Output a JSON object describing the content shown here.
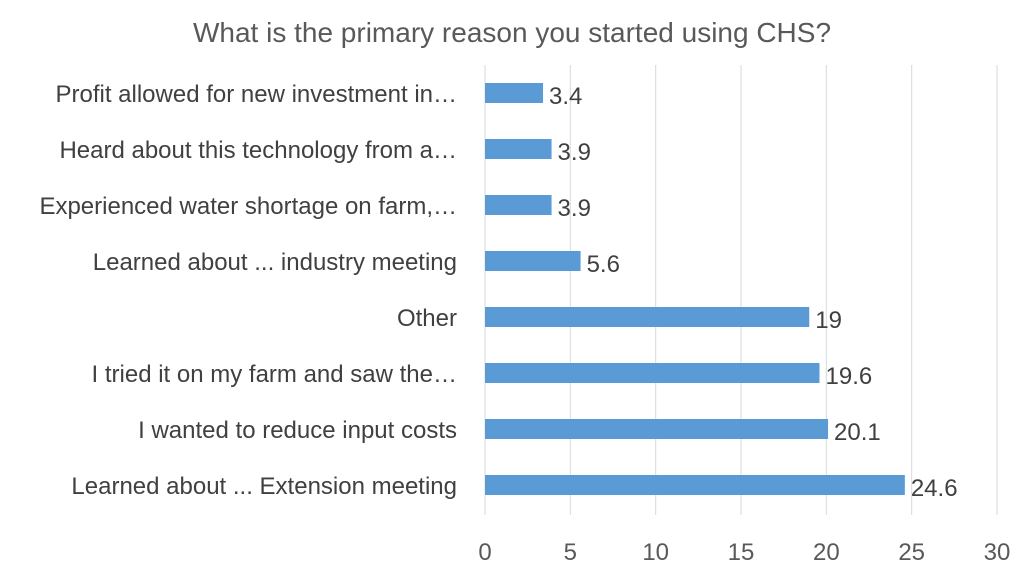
{
  "chart_data": {
    "type": "bar",
    "orientation": "horizontal",
    "title": "What is the primary reason you started using CHS?",
    "categories": [
      "Profit allowed for new investment in…",
      "Heard about this technology from a…",
      "Experienced water shortage on farm,…",
      "Learned about ... industry meeting",
      "Other",
      "I tried it on my farm and saw the…",
      "I wanted to reduce input costs",
      "Learned about ... Extension meeting"
    ],
    "values": [
      3.4,
      3.9,
      3.9,
      5.6,
      19,
      19.6,
      20.1,
      24.6
    ],
    "data_labels": [
      "3.4",
      "3.9",
      "3.9",
      "5.6",
      "19",
      "19.6",
      "20.1",
      "24.6"
    ],
    "xlim": [
      0,
      30
    ],
    "x_ticks": [
      "0",
      "5",
      "10",
      "15",
      "20",
      "25",
      "30"
    ],
    "grid": "vertical",
    "legend": "none",
    "bar_color": "#5B9BD5"
  }
}
